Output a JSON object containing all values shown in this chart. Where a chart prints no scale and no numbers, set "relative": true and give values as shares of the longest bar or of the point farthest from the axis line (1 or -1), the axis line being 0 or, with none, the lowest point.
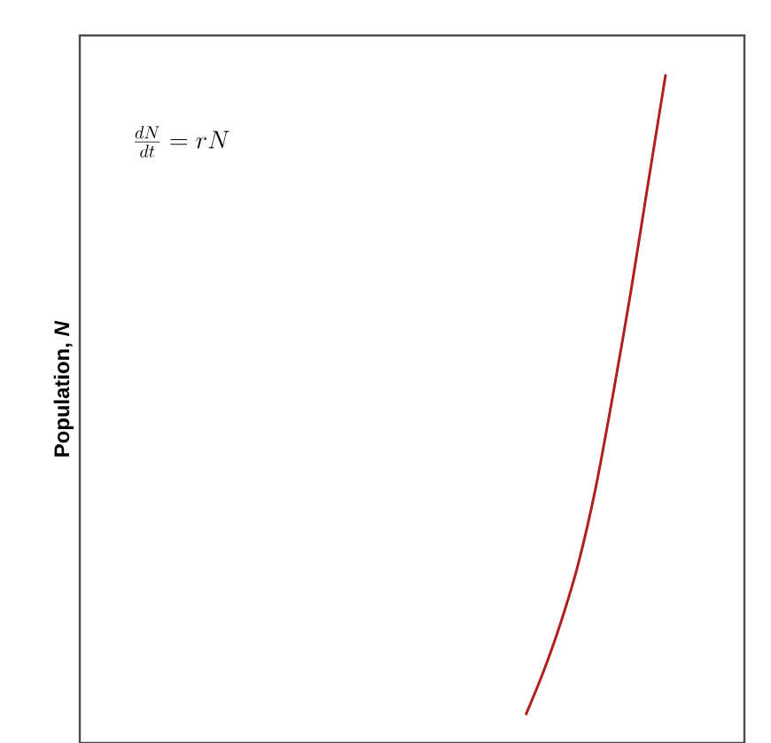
{
  "chart_data": {
    "type": "line",
    "relative": true,
    "ylabel": "Population, *N*",
    "annotations": [
      "\\frac{dN}{dt}=rN"
    ],
    "categories": [
      null,
      null,
      null,
      null,
      null,
      null,
      null,
      null,
      null,
      null,
      null,
      null,
      null,
      null,
      null,
      null,
      null,
      null,
      null,
      null,
      null,
      null,
      null,
      null,
      null,
      null,
      null,
      null,
      null,
      null,
      null,
      null,
      null,
      null,
      null,
      null,
      null,
      null
    ],
    "series": [
      {
        "color": "#b02020",
        "values": [
          null,
          null,
          null,
          null,
          null,
          null,
          null,
          null,
          null,
          null,
          null,
          null,
          null,
          null,
          null,
          null,
          null,
          null,
          null,
          null,
          null,
          null,
          null,
          null,
          null,
          0.042,
          0.106,
          0.18,
          0.268,
          0.382,
          0.523,
          0.674,
          0.838,
          1,
          null,
          null,
          null,
          null
        ]
      }
    ]
  }
}
